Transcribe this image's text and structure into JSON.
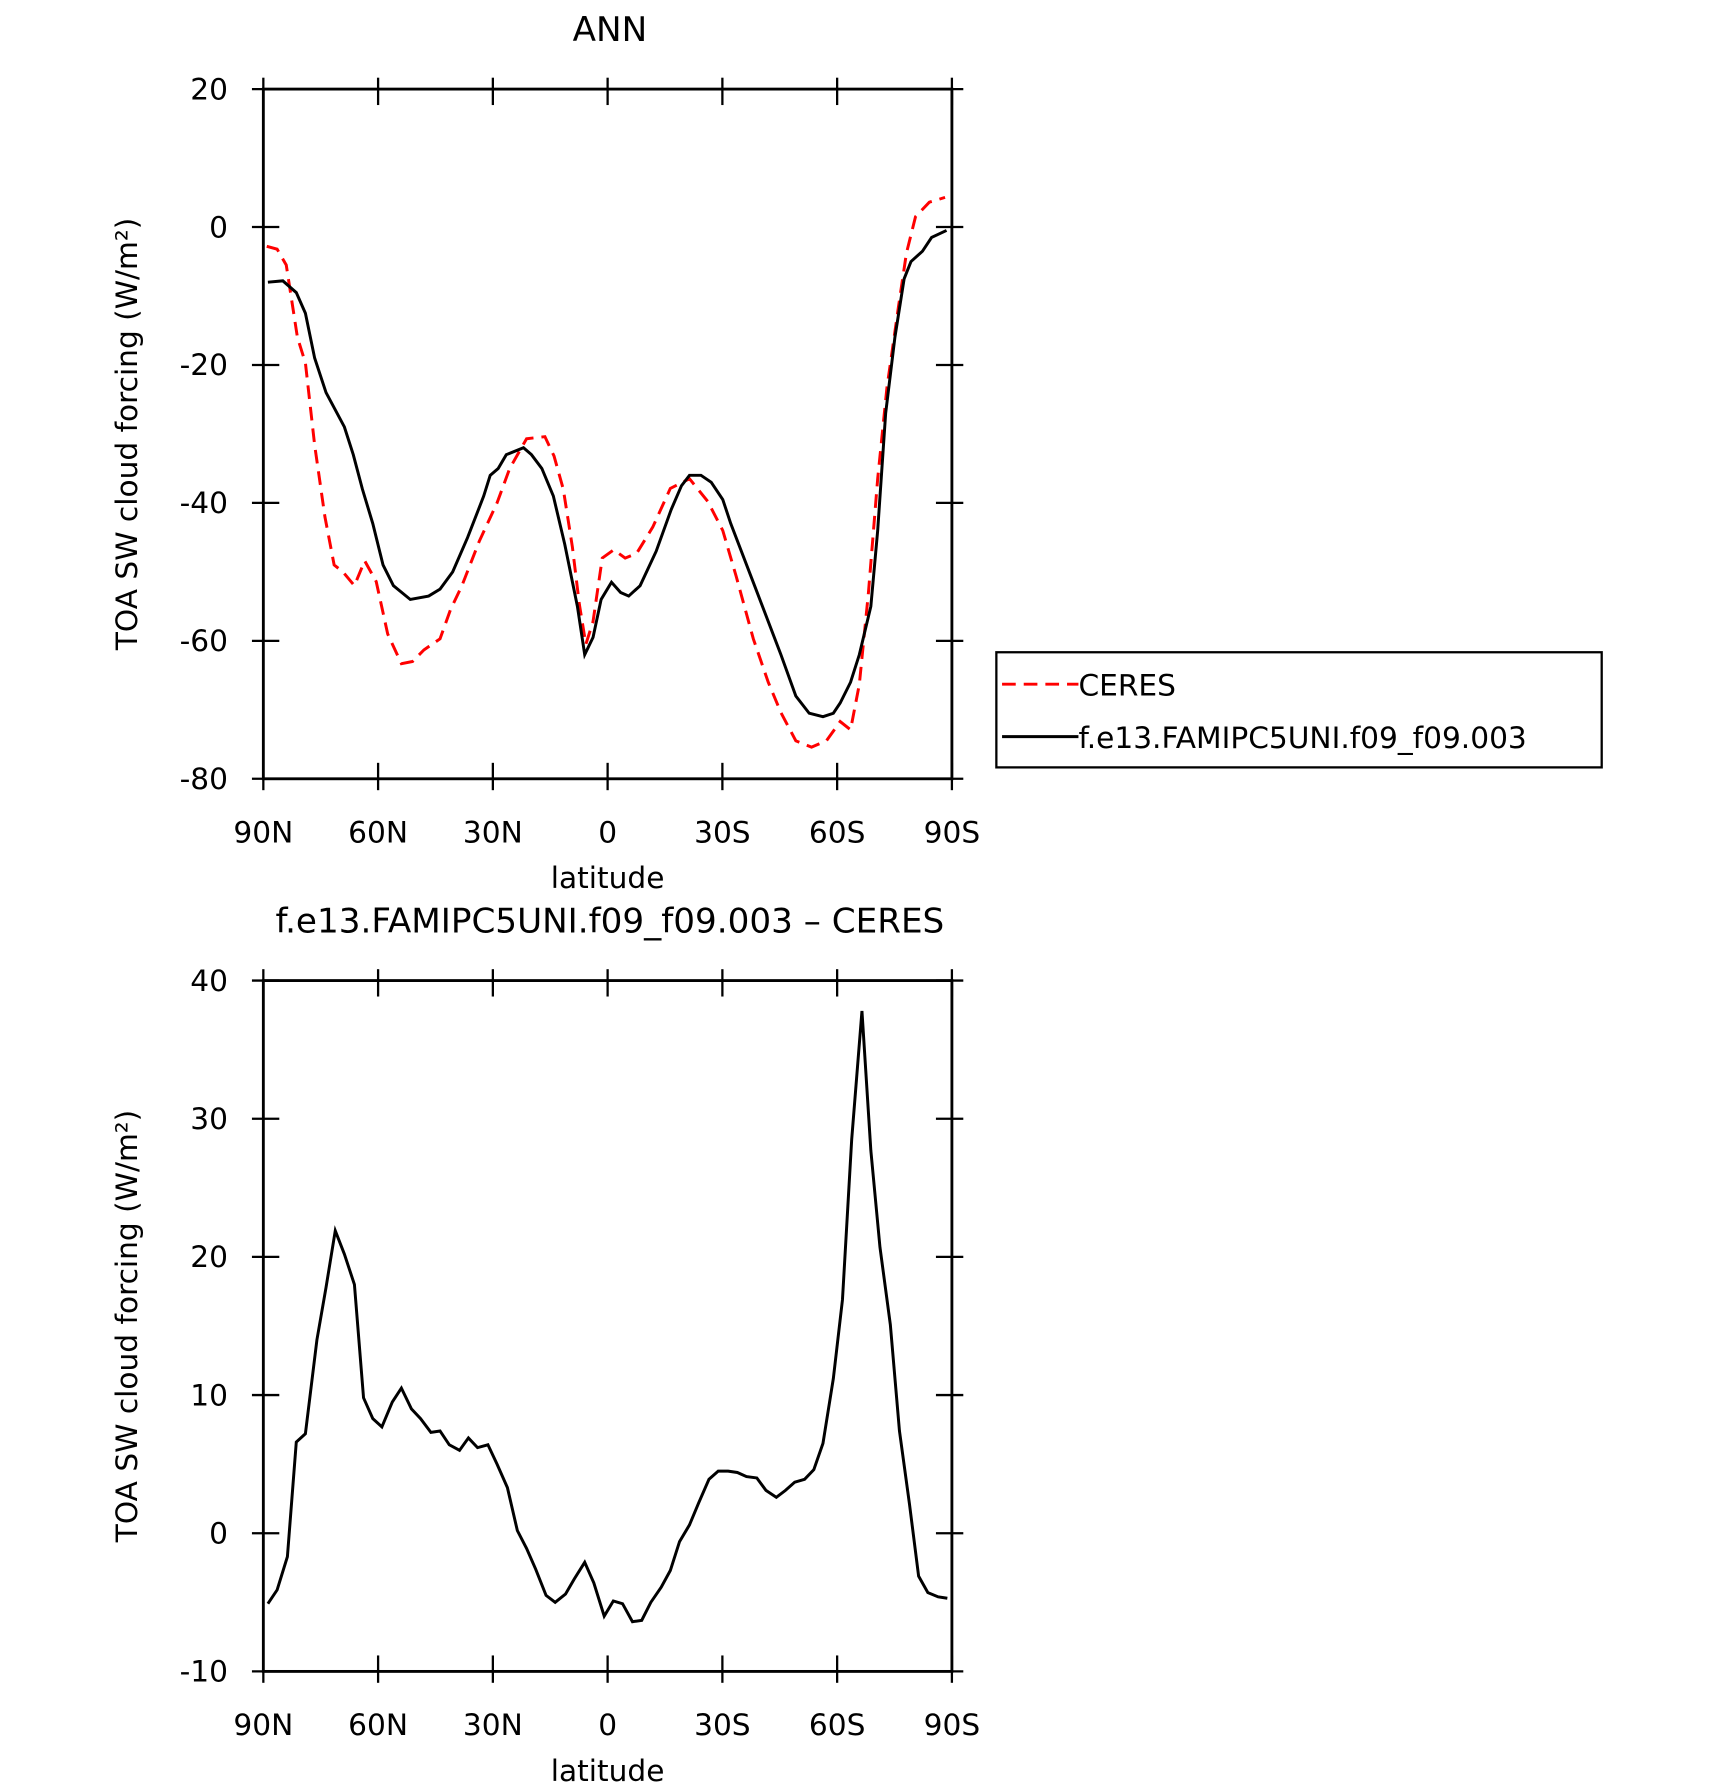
{
  "chart_data": [
    {
      "type": "line",
      "title": "ANN",
      "xlabel": "latitude",
      "ylabel": "TOA SW cloud forcing (W/m²)",
      "xlim": [
        90,
        -90
      ],
      "xticks": [
        {
          "value": 90,
          "label": "90N"
        },
        {
          "value": 60,
          "label": "60N"
        },
        {
          "value": 30,
          "label": "30N"
        },
        0,
        {
          "value": -30,
          "label": "30S"
        },
        {
          "value": -60,
          "label": "60S"
        },
        {
          "value": -90,
          "label": "90S"
        }
      ],
      "ylim": [
        -80,
        20
      ],
      "yticks": [
        -80,
        -60,
        -40,
        -20,
        0,
        20
      ],
      "legend": "right",
      "series": [
        {
          "name": "CERES",
          "color": "#ff0000",
          "dash": true,
          "x": [
            89.1,
            86.4,
            84,
            81.1,
            79,
            76.6,
            73.9,
            71.5,
            69.2,
            66.2,
            63.5,
            60.5,
            57.5,
            53.9,
            51,
            48,
            43.8,
            41.1,
            38.1,
            33.6,
            28.9,
            25.6,
            21.2,
            16.4,
            14,
            11.6,
            9.2,
            7.4,
            5.7,
            3.8,
            1.4,
            -1.6,
            -4.6,
            -7.6,
            -11.8,
            -16.4,
            -21.4,
            -26.2,
            -30.1,
            -33.6,
            -38.1,
            -42,
            -45.3,
            -49.2,
            -53.3,
            -57.2,
            -60.8,
            -63.5,
            -65.8,
            -68.2,
            -70.6,
            -73,
            -76,
            -78.1,
            -80.5,
            -84.1,
            -88.2
          ],
          "values": [
            -2.8,
            -3.2,
            -5.5,
            -16,
            -19.7,
            -31.6,
            -42,
            -49,
            -50,
            -52,
            -48.4,
            -51.4,
            -59,
            -63.3,
            -63,
            -61.3,
            -59.7,
            -55.5,
            -52,
            -45.6,
            -40,
            -35,
            -30.7,
            -30.4,
            -33.2,
            -38,
            -46.4,
            -54.7,
            -60.5,
            -57.2,
            -48,
            -46.8,
            -48,
            -47.3,
            -43.5,
            -37.9,
            -36.5,
            -39.8,
            -44,
            -50.6,
            -59.7,
            -66,
            -70.4,
            -74.5,
            -75.4,
            -74.5,
            -71.7,
            -72.9,
            -66.3,
            -53,
            -36.5,
            -23.3,
            -11.7,
            -3.8,
            1.5,
            3.6,
            4.3
          ]
        },
        {
          "name": "f.e13.FAMIPC5UNI.f09_f09.003",
          "color": "#000000",
          "dash": false,
          "x": [
            88.8,
            84.9,
            81.4,
            79,
            76.6,
            73.6,
            68.8,
            66.5,
            64.1,
            61.4,
            58.7,
            56,
            51.6,
            46.8,
            43.8,
            40.5,
            36.6,
            32.4,
            30.7,
            28.6,
            26.5,
            22,
            19.9,
            17.2,
            14.2,
            11.2,
            7.9,
            6,
            3.8,
            1.7,
            -1,
            -3.4,
            -5.5,
            -8.5,
            -12.7,
            -16.6,
            -19.3,
            -21.4,
            -24.4,
            -27.1,
            -30.1,
            -32.2,
            -38.4,
            -45.3,
            -49.2,
            -52.7,
            -56.3,
            -59,
            -60.8,
            -63.5,
            -65.8,
            -68.8,
            -70.6,
            -72.7,
            -75.1,
            -77.5,
            -79.3,
            -82.3,
            -84.7,
            -88.6
          ],
          "values": [
            -8,
            -7.8,
            -9.5,
            -12.5,
            -19,
            -24,
            -29,
            -33,
            -38,
            -43,
            -49,
            -52,
            -54,
            -53.5,
            -52.5,
            -50,
            -45,
            -39,
            -36,
            -35,
            -33,
            -32,
            -33,
            -35,
            -39,
            -46,
            -55,
            -62,
            -59.5,
            -54,
            -51.5,
            -53,
            -53.5,
            -52,
            -47,
            -41,
            -37.5,
            -36,
            -36,
            -37,
            -39.5,
            -43,
            -52,
            -62,
            -68,
            -70.5,
            -71,
            -70.5,
            -69,
            -66,
            -62,
            -55,
            -44,
            -27,
            -16,
            -7.5,
            -5,
            -3.5,
            -1.5,
            -0.5
          ]
        }
      ]
    },
    {
      "type": "line",
      "title": "f.e13.FAMIPC5UNI.f09_f09.003 – CERES",
      "xlabel": "latitude",
      "ylabel": "TOA SW cloud forcing (W/m²)",
      "xlim": [
        90,
        -90
      ],
      "xticks": [
        {
          "value": 90,
          "label": "90N"
        },
        {
          "value": 60,
          "label": "60N"
        },
        {
          "value": 30,
          "label": "30N"
        },
        0,
        {
          "value": -30,
          "label": "30S"
        },
        {
          "value": -60,
          "label": "60S"
        },
        {
          "value": -90,
          "label": "90S"
        }
      ],
      "ylim": [
        -10,
        40
      ],
      "yticks": [
        -10,
        0,
        10,
        20,
        30,
        40
      ],
      "series": [
        {
          "color": "#000000",
          "dash": false,
          "x": [
            88.8,
            86.4,
            83.7,
            81.4,
            79,
            76,
            73.6,
            71.2,
            68.8,
            66.2,
            63.8,
            61.4,
            59,
            56.3,
            53.9,
            51.3,
            48.9,
            46.2,
            43.8,
            41.4,
            38.7,
            36.4,
            34,
            31.3,
            28.9,
            26.2,
            23.6,
            21.2,
            18.8,
            16.1,
            13.7,
            11,
            8.7,
            6,
            3.6,
            0.9,
            -1.5,
            -3.9,
            -6.5,
            -8.9,
            -11.3,
            -14,
            -16.4,
            -18.8,
            -21.4,
            -23.8,
            -26.5,
            -28.9,
            -31.5,
            -33.9,
            -36.3,
            -39,
            -41.4,
            -44.1,
            -46.5,
            -48.9,
            -51.5,
            -53.9,
            -56.3,
            -59,
            -61.4,
            -63.8,
            -66.5,
            -68.8,
            -71.2,
            -73.9,
            -76.3,
            -78.9,
            -81.3,
            -83.7,
            -86.4,
            -88.8
          ],
          "values": [
            -5.1,
            -4.1,
            -1.7,
            6.6,
            7.2,
            14,
            17.8,
            21.9,
            20.2,
            18,
            9.8,
            8.3,
            7.7,
            9.5,
            10.5,
            9,
            8.3,
            7.3,
            7.4,
            6.4,
            6,
            6.9,
            6.2,
            6.4,
            5,
            3.3,
            0.2,
            -1.1,
            -2.6,
            -4.5,
            -5,
            -4.4,
            -3.3,
            -2.1,
            -3.6,
            -6,
            -4.9,
            -5.1,
            -6.4,
            -6.3,
            -5,
            -3.9,
            -2.7,
            -0.6,
            0.6,
            2.2,
            3.9,
            4.5,
            4.5,
            4.4,
            4.1,
            4,
            3.1,
            2.6,
            3.1,
            3.7,
            3.9,
            4.6,
            6.5,
            11.2,
            16.9,
            28.5,
            37.8,
            27.7,
            20.7,
            15.1,
            7.4,
            2.1,
            -3.1,
            -4.3,
            -4.6,
            -4.7
          ]
        }
      ]
    }
  ]
}
